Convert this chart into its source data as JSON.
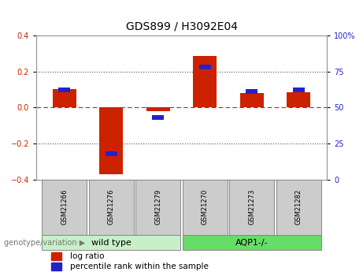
{
  "title": "GDS899 / H3092E04",
  "samples": [
    "GSM21266",
    "GSM21276",
    "GSM21279",
    "GSM21270",
    "GSM21273",
    "GSM21282"
  ],
  "log_ratio": [
    0.1,
    -0.37,
    -0.02,
    0.285,
    0.08,
    0.085
  ],
  "percentile_rank": [
    62,
    18,
    43,
    78,
    61,
    62
  ],
  "ylim_left": [
    -0.4,
    0.4
  ],
  "ylim_right": [
    0,
    100
  ],
  "yticks_left": [
    -0.4,
    -0.2,
    0.0,
    0.2,
    0.4
  ],
  "yticks_right": [
    0,
    25,
    50,
    75,
    100
  ],
  "groups": [
    {
      "label": "wild type",
      "indices": [
        0,
        1,
        2
      ],
      "color": "#c8f0c8"
    },
    {
      "label": "AQP1-/-",
      "indices": [
        3,
        4,
        5
      ],
      "color": "#66dd66"
    }
  ],
  "group_label_prefix": "genotype/variation",
  "bar_width": 0.5,
  "log_ratio_color": "#cc2200",
  "percentile_color": "#2222cc",
  "zero_line_color": "#cc2200",
  "dotted_line_color": "#555555",
  "bg_plot": "#ffffff",
  "bg_label": "#cccccc",
  "border_color": "#888888",
  "title_fontsize": 10,
  "tick_fontsize": 7,
  "legend_fontsize": 7.5,
  "right_tick_labels": [
    "0",
    "25",
    "50",
    "75",
    "100%"
  ]
}
